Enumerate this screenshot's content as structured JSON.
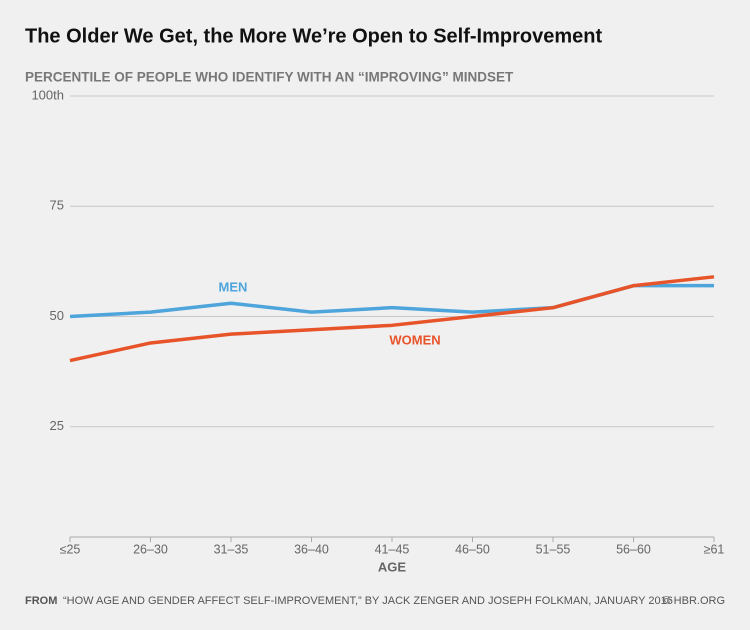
{
  "chart_data": {
    "type": "line",
    "title": "The Older We Get, the More We’re Open to Self-Improvement",
    "subtitle": "PERCENTILE OF PEOPLE WHO IDENTIFY WITH AN “IMPROVING” MINDSET",
    "x_label": "AGE",
    "categories": [
      "≤25",
      "26–30",
      "31–35",
      "36–40",
      "41–45",
      "46–50",
      "51–55",
      "56–60",
      "≥61"
    ],
    "series": [
      {
        "name": "MEN",
        "color": "#4ea5dc",
        "values": [
          50,
          51,
          53,
          51,
          52,
          51,
          52,
          57,
          57
        ]
      },
      {
        "name": "WOMEN",
        "color": "#e8542a",
        "values": [
          40,
          44,
          46,
          47,
          48,
          50,
          52,
          57,
          59
        ]
      }
    ],
    "ylim": [
      0,
      100
    ],
    "yticks": [
      25,
      50,
      75,
      {
        "value": 100,
        "label": "100th"
      }
    ],
    "grid": true,
    "source_label": "FROM",
    "source": "“HOW AGE AND GENDER AFFECT SELF-IMPROVEMENT,” BY JACK ZENGER AND JOSEPH FOLKMAN, JANUARY 2016",
    "credit": "© HBR.ORG"
  }
}
